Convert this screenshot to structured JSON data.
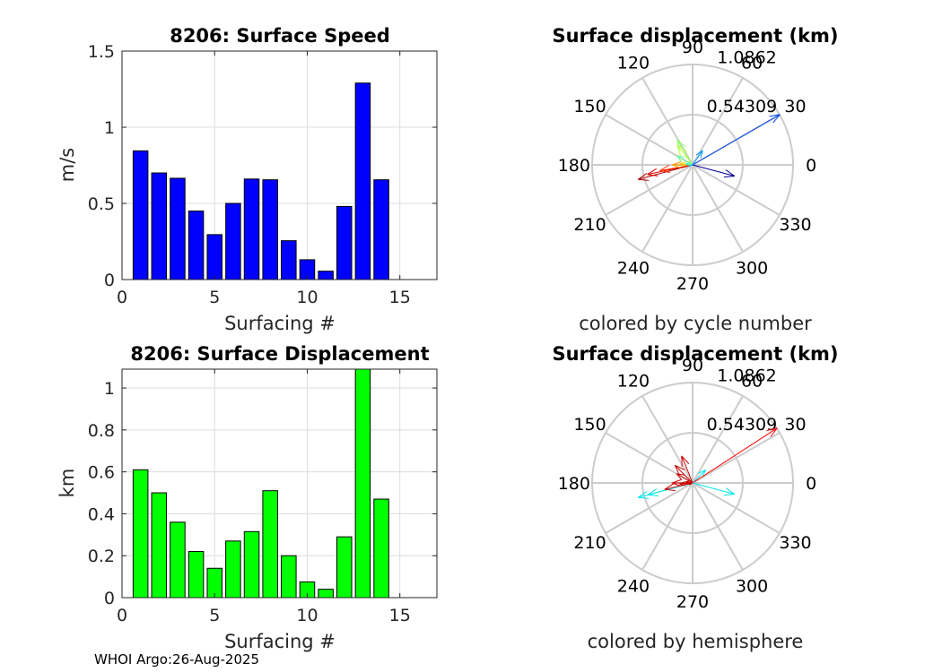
{
  "footer": "WHOI Argo:26-Aug-2025",
  "chart_data": [
    {
      "type": "bar",
      "title": "8206: Surface Speed",
      "xlabel": "Surfacing #",
      "ylabel": "m/s",
      "x": [
        1,
        2,
        3,
        4,
        5,
        6,
        7,
        8,
        9,
        10,
        11,
        12,
        13,
        14
      ],
      "values": [
        0.845,
        0.7,
        0.665,
        0.45,
        0.295,
        0.5,
        0.66,
        0.655,
        0.255,
        0.13,
        0.055,
        0.48,
        1.29,
        0.655
      ],
      "xlim": [
        0,
        17
      ],
      "ylim": [
        0,
        1.5
      ],
      "xticks": [
        0,
        5,
        10,
        15
      ],
      "xtick_labels": [
        "0",
        "5",
        "10",
        "15"
      ],
      "yticks": [
        0,
        0.5,
        1,
        1.5
      ],
      "ytick_labels": [
        "0",
        "0.5",
        "1",
        "1.5"
      ],
      "bar_color": "#0000ff",
      "grid": true
    },
    {
      "type": "bar",
      "title": "8206: Surface Displacement",
      "xlabel": "Surfacing #",
      "ylabel": "km",
      "x": [
        1,
        2,
        3,
        4,
        5,
        6,
        7,
        8,
        9,
        10,
        11,
        12,
        13,
        14
      ],
      "values": [
        0.61,
        0.5,
        0.36,
        0.22,
        0.14,
        0.27,
        0.315,
        0.51,
        0.2,
        0.075,
        0.04,
        0.29,
        1.09,
        0.47
      ],
      "xlim": [
        0,
        17
      ],
      "ylim": [
        0,
        1.09
      ],
      "xticks": [
        0,
        5,
        10,
        15
      ],
      "xtick_labels": [
        "0",
        "5",
        "10",
        "15"
      ],
      "yticks": [
        0,
        0.2,
        0.4,
        0.6,
        0.8,
        1
      ],
      "ytick_labels": [
        "0",
        "0.2",
        "0.4",
        "0.6",
        "0.8",
        "1"
      ],
      "bar_color": "#00ff00",
      "grid": true
    },
    {
      "type": "polar-vector",
      "title": "Surface displacement (km)",
      "caption": "colored by cycle number",
      "rmax": 1.0862,
      "ring_labels": [
        "0.54309",
        "1.0862"
      ],
      "ring_values": [
        0.54309,
        1.0862
      ],
      "angle_labels": [
        "0",
        "30",
        "60",
        "90",
        "120",
        "150",
        "180",
        "210",
        "240",
        "270",
        "300",
        "330"
      ],
      "vectors": [
        {
          "r": 0.61,
          "theta": 195,
          "color": "#aa0000"
        },
        {
          "r": 0.5,
          "theta": 192,
          "color": "#dd0000"
        },
        {
          "r": 0.36,
          "theta": 190,
          "color": "#ff3300"
        },
        {
          "r": 0.22,
          "theta": 180,
          "color": "#ff9900"
        },
        {
          "r": 0.14,
          "theta": 175,
          "color": "#ffcc00"
        },
        {
          "r": 0.27,
          "theta": 128,
          "color": "#ccff33"
        },
        {
          "r": 0.315,
          "theta": 122,
          "color": "#88ff66"
        },
        {
          "r": 0.2,
          "theta": 150,
          "color": "#66ff99"
        },
        {
          "r": 0.075,
          "theta": 170,
          "color": "#33ffcc"
        },
        {
          "r": 0.04,
          "theta": 200,
          "color": "#00ccff"
        },
        {
          "r": 0.19,
          "theta": 55,
          "color": "#0099ff"
        },
        {
          "r": 1.09,
          "theta": 30,
          "color": "#0044ee"
        },
        {
          "r": 0.47,
          "theta": 345,
          "color": "#000099"
        }
      ]
    },
    {
      "type": "polar-vector",
      "title": "Surface displacement (km)",
      "caption": "colored by hemisphere",
      "rmax": 1.0862,
      "ring_labels": [
        "0.54309",
        "1.0862"
      ],
      "ring_values": [
        0.54309,
        1.0862
      ],
      "angle_labels": [
        "0",
        "30",
        "60",
        "90",
        "120",
        "150",
        "180",
        "210",
        "240",
        "270",
        "300",
        "330"
      ],
      "vectors": [
        {
          "r": 0.61,
          "theta": 195,
          "color": "#00e5ee"
        },
        {
          "r": 0.5,
          "theta": 195,
          "color": "#00e5ee"
        },
        {
          "r": 0.31,
          "theta": 193,
          "color": "#cc0000"
        },
        {
          "r": 0.22,
          "theta": 180,
          "color": "#cc0000"
        },
        {
          "r": 0.14,
          "theta": 185,
          "color": "#cc0000"
        },
        {
          "r": 0.27,
          "theta": 135,
          "color": "#cc0000"
        },
        {
          "r": 0.315,
          "theta": 112,
          "color": "#cc0000"
        },
        {
          "r": 0.2,
          "theta": 150,
          "color": "#cc0000"
        },
        {
          "r": 0.075,
          "theta": 170,
          "color": "#cc0000"
        },
        {
          "r": 0.04,
          "theta": 205,
          "color": "#cc0000"
        },
        {
          "r": 0.2,
          "theta": 45,
          "color": "#00e5ee"
        },
        {
          "r": 1.09,
          "theta": 33,
          "color": "#ff0000"
        },
        {
          "r": 0.47,
          "theta": 345,
          "color": "#00e5ee"
        }
      ]
    }
  ]
}
